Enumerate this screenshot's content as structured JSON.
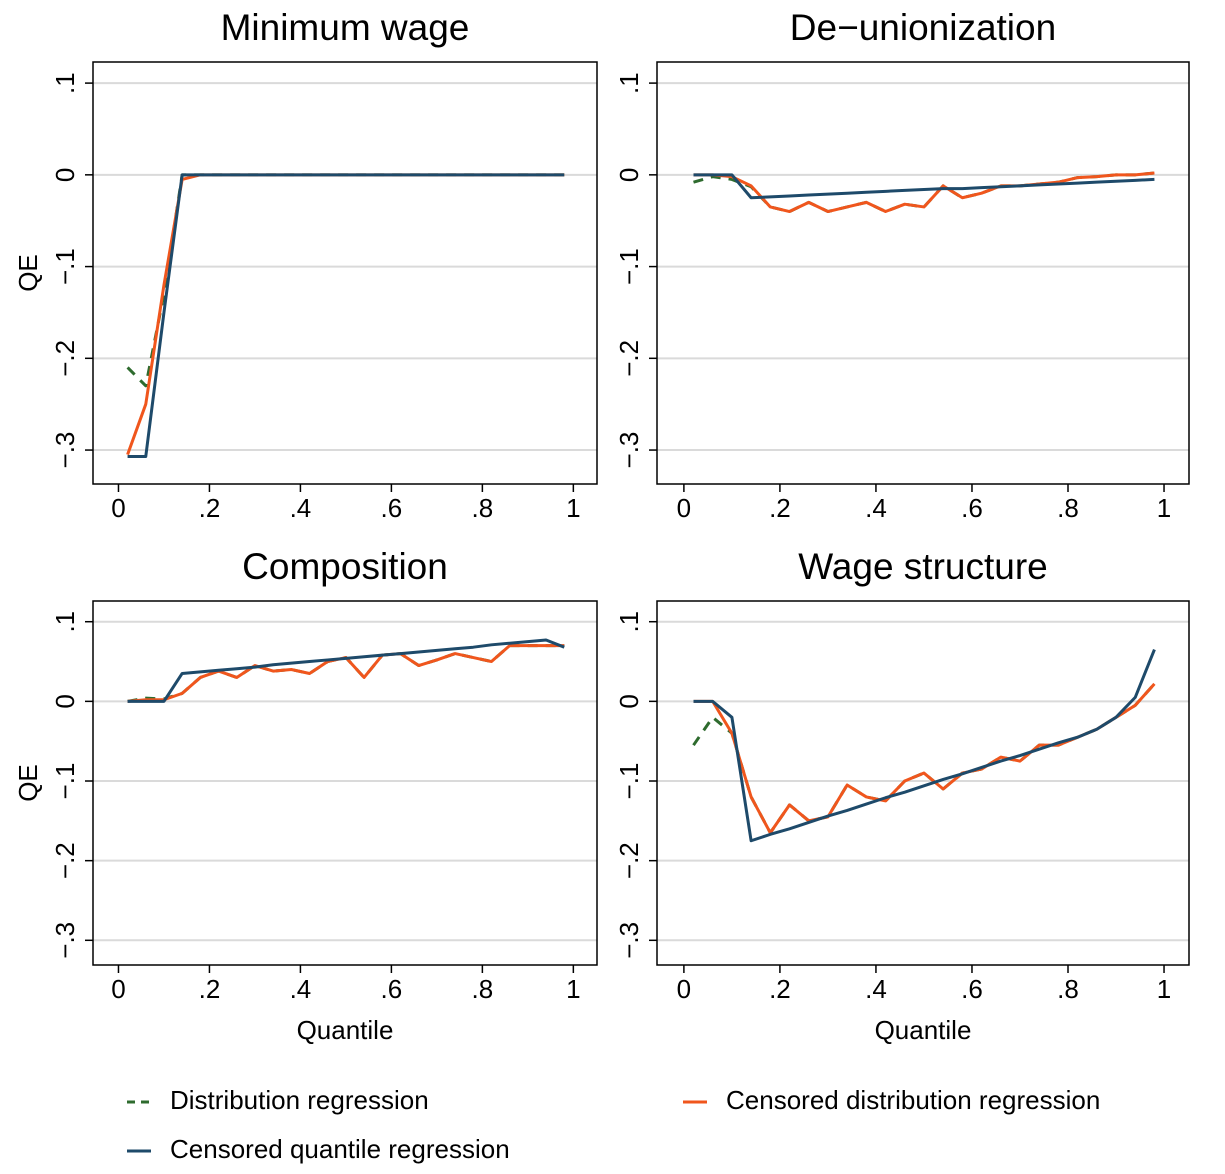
{
  "chart_data": [
    {
      "type": "line",
      "title": "Minimum wage",
      "y_label": "QE",
      "x": [
        0.02,
        0.06,
        0.1,
        0.14,
        0.18,
        0.22,
        0.26,
        0.3,
        0.34,
        0.38,
        0.42,
        0.46,
        0.5,
        0.54,
        0.58,
        0.62,
        0.66,
        0.7,
        0.74,
        0.78,
        0.82,
        0.86,
        0.9,
        0.94,
        0.98
      ],
      "xlim": [
        -0.056,
        1.052
      ],
      "ylim": [
        -0.337,
        0.123
      ],
      "xticks": [
        0,
        {
          "value": 0.2,
          "label": ".2"
        },
        {
          "value": 0.4,
          "label": ".4"
        },
        {
          "value": 0.6,
          "label": ".6"
        },
        {
          "value": 0.8,
          "label": ".8"
        },
        1
      ],
      "yticks": [
        {
          "value": 0.1,
          "label": ".1"
        },
        0,
        {
          "value": -0.1,
          "label": "−.1"
        },
        {
          "value": -0.2,
          "label": "−.2"
        },
        {
          "value": -0.3,
          "label": "−.3"
        }
      ],
      "grid": true,
      "series": [
        {
          "name": "Distribution regression",
          "color": "#2e6b2e",
          "dash": true,
          "values": [
            -0.21,
            -0.23,
            -0.13,
            0,
            0,
            0,
            0,
            0,
            0,
            0,
            0,
            0,
            0,
            0,
            0,
            0,
            0,
            0,
            0,
            0,
            0,
            0,
            0,
            0,
            0
          ]
        },
        {
          "name": "Censored distribution regression",
          "color": "#f0561d",
          "values": [
            -0.305,
            -0.25,
            -0.12,
            -0.005,
            0,
            0,
            0,
            0,
            0,
            0,
            0,
            0,
            0,
            0,
            0,
            0,
            0,
            0,
            0,
            0,
            0,
            0,
            0,
            0,
            0
          ]
        },
        {
          "name": "Censored quantile regression",
          "color": "#1e4a6a",
          "values": [
            -0.307,
            -0.307,
            -0.15,
            0,
            0,
            0,
            0,
            0,
            0,
            0,
            0,
            0,
            0,
            0,
            0,
            0,
            0,
            0,
            0,
            0,
            0,
            0,
            0,
            0,
            0
          ]
        }
      ]
    },
    {
      "type": "line",
      "title": "De−unionization",
      "x": [
        0.02,
        0.06,
        0.1,
        0.14,
        0.18,
        0.22,
        0.26,
        0.3,
        0.34,
        0.38,
        0.42,
        0.46,
        0.5,
        0.54,
        0.58,
        0.62,
        0.66,
        0.7,
        0.74,
        0.78,
        0.82,
        0.86,
        0.9,
        0.94,
        0.98
      ],
      "xlim": [
        -0.056,
        1.052
      ],
      "ylim": [
        -0.337,
        0.123
      ],
      "xticks": [
        0,
        {
          "value": 0.2,
          "label": ".2"
        },
        {
          "value": 0.4,
          "label": ".4"
        },
        {
          "value": 0.6,
          "label": ".6"
        },
        {
          "value": 0.8,
          "label": ".8"
        },
        1
      ],
      "yticks": [
        {
          "value": 0.1,
          "label": ".1"
        },
        0,
        {
          "value": -0.1,
          "label": "−.1"
        },
        {
          "value": -0.2,
          "label": "−.2"
        },
        {
          "value": -0.3,
          "label": "−.3"
        }
      ],
      "grid": true,
      "series": [
        {
          "name": "Distribution regression",
          "color": "#2e6b2e",
          "dash": true,
          "values": [
            -0.008,
            -0.002,
            -0.005,
            -0.013,
            -0.035,
            -0.04,
            -0.03,
            -0.04,
            -0.035,
            -0.03,
            -0.04,
            -0.032,
            -0.035,
            -0.012,
            -0.025,
            -0.02,
            -0.012,
            -0.012,
            -0.01,
            -0.008,
            -0.003,
            -0.002,
            0,
            0,
            0.002
          ]
        },
        {
          "name": "Censored distribution regression",
          "color": "#f0561d",
          "values": [
            0,
            0,
            -0.002,
            -0.012,
            -0.035,
            -0.04,
            -0.03,
            -0.04,
            -0.035,
            -0.03,
            -0.04,
            -0.032,
            -0.035,
            -0.012,
            -0.025,
            -0.02,
            -0.012,
            -0.012,
            -0.01,
            -0.008,
            -0.003,
            -0.002,
            0,
            0,
            0.002
          ]
        },
        {
          "name": "Censored quantile regression",
          "color": "#1e4a6a",
          "values": [
            0,
            0,
            0,
            -0.025,
            -0.024,
            -0.023,
            -0.022,
            -0.021,
            -0.02,
            -0.019,
            -0.018,
            -0.017,
            -0.016,
            -0.015,
            -0.015,
            -0.014,
            -0.013,
            -0.012,
            -0.011,
            -0.01,
            -0.009,
            -0.008,
            -0.007,
            -0.006,
            -0.005
          ]
        }
      ]
    },
    {
      "type": "line",
      "title": "Composition",
      "y_label": "QE",
      "x_label": "Quantile",
      "x": [
        0.02,
        0.06,
        0.1,
        0.14,
        0.18,
        0.22,
        0.26,
        0.3,
        0.34,
        0.38,
        0.42,
        0.46,
        0.5,
        0.54,
        0.58,
        0.62,
        0.66,
        0.7,
        0.74,
        0.78,
        0.82,
        0.86,
        0.9,
        0.94,
        0.98
      ],
      "xlim": [
        -0.056,
        1.052
      ],
      "ylim": [
        -0.331,
        0.126
      ],
      "xticks": [
        0,
        {
          "value": 0.2,
          "label": ".2"
        },
        {
          "value": 0.4,
          "label": ".4"
        },
        {
          "value": 0.6,
          "label": ".6"
        },
        {
          "value": 0.8,
          "label": ".8"
        },
        1
      ],
      "yticks": [
        {
          "value": 0.1,
          "label": ".1"
        },
        0,
        {
          "value": -0.1,
          "label": "−.1"
        },
        {
          "value": -0.2,
          "label": "−.2"
        },
        {
          "value": -0.3,
          "label": "−.3"
        }
      ],
      "grid": true,
      "series": [
        {
          "name": "Distribution regression",
          "color": "#2e6b2e",
          "dash": true,
          "values": [
            0,
            0.004,
            0.003,
            0.01,
            0.03,
            0.038,
            0.03,
            0.045,
            0.038,
            0.04,
            0.035,
            0.05,
            0.055,
            0.03,
            0.058,
            0.06,
            0.045,
            0.052,
            0.06,
            0.055,
            0.05,
            0.07,
            0.07,
            0.07,
            0.07
          ]
        },
        {
          "name": "Censored distribution regression",
          "color": "#f0561d",
          "values": [
            0,
            0.002,
            0.002,
            0.01,
            0.03,
            0.038,
            0.03,
            0.045,
            0.038,
            0.04,
            0.035,
            0.05,
            0.055,
            0.03,
            0.058,
            0.06,
            0.045,
            0.052,
            0.06,
            0.055,
            0.05,
            0.07,
            0.07,
            0.07,
            0.07
          ]
        },
        {
          "name": "Censored quantile regression",
          "color": "#1e4a6a",
          "values": [
            0,
            0,
            0,
            0.035,
            0.037,
            0.039,
            0.041,
            0.043,
            0.046,
            0.048,
            0.05,
            0.052,
            0.054,
            0.056,
            0.058,
            0.06,
            0.062,
            0.064,
            0.066,
            0.068,
            0.071,
            0.073,
            0.075,
            0.077,
            0.068
          ]
        }
      ]
    },
    {
      "type": "line",
      "title": "Wage structure",
      "x_label": "Quantile",
      "x": [
        0.02,
        0.06,
        0.1,
        0.14,
        0.18,
        0.22,
        0.26,
        0.3,
        0.34,
        0.38,
        0.42,
        0.46,
        0.5,
        0.54,
        0.58,
        0.62,
        0.66,
        0.7,
        0.74,
        0.78,
        0.82,
        0.86,
        0.9,
        0.94,
        0.98
      ],
      "xlim": [
        -0.056,
        1.052
      ],
      "ylim": [
        -0.331,
        0.126
      ],
      "xticks": [
        0,
        {
          "value": 0.2,
          "label": ".2"
        },
        {
          "value": 0.4,
          "label": ".4"
        },
        {
          "value": 0.6,
          "label": ".6"
        },
        {
          "value": 0.8,
          "label": ".8"
        },
        1
      ],
      "yticks": [
        {
          "value": 0.1,
          "label": ".1"
        },
        0,
        {
          "value": -0.1,
          "label": "−.1"
        },
        {
          "value": -0.2,
          "label": "−.2"
        },
        {
          "value": -0.3,
          "label": "−.3"
        }
      ],
      "grid": true,
      "series": [
        {
          "name": "Distribution regression",
          "color": "#2e6b2e",
          "dash": true,
          "values": [
            -0.055,
            -0.02,
            -0.04,
            -0.12,
            -0.165,
            -0.13,
            -0.15,
            -0.145,
            -0.105,
            -0.12,
            -0.125,
            -0.1,
            -0.09,
            -0.11,
            -0.09,
            -0.085,
            -0.07,
            -0.075,
            -0.055,
            -0.055,
            -0.045,
            -0.035,
            -0.02,
            -0.005,
            0.022
          ]
        },
        {
          "name": "Censored distribution regression",
          "color": "#f0561d",
          "values": [
            0,
            0,
            -0.04,
            -0.12,
            -0.165,
            -0.13,
            -0.15,
            -0.145,
            -0.105,
            -0.12,
            -0.125,
            -0.1,
            -0.09,
            -0.11,
            -0.09,
            -0.085,
            -0.07,
            -0.075,
            -0.055,
            -0.055,
            -0.045,
            -0.035,
            -0.02,
            -0.005,
            0.022
          ]
        },
        {
          "name": "Censored quantile regression",
          "color": "#1e4a6a",
          "values": [
            0,
            0,
            -0.02,
            -0.175,
            -0.167,
            -0.16,
            -0.152,
            -0.144,
            -0.137,
            -0.129,
            -0.121,
            -0.114,
            -0.106,
            -0.098,
            -0.091,
            -0.083,
            -0.075,
            -0.068,
            -0.06,
            -0.052,
            -0.045,
            -0.035,
            -0.02,
            0.005,
            0.065
          ]
        }
      ]
    }
  ]
}
